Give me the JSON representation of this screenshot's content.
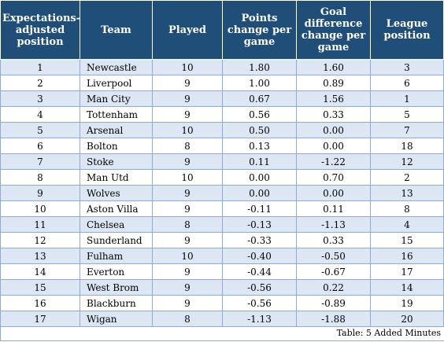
{
  "table": {
    "headers": [
      "Expectations-adjusted position",
      "Team",
      "Played",
      "Points change per game",
      "Goal difference change per game",
      "League position"
    ],
    "rows": [
      [
        "1",
        "Newcastle",
        "10",
        "1.80",
        "1.60",
        "3"
      ],
      [
        "2",
        "Liverpool",
        "9",
        "1.00",
        "0.89",
        "6"
      ],
      [
        "3",
        "Man City",
        "9",
        "0.67",
        "1.56",
        "1"
      ],
      [
        "4",
        "Tottenham",
        "9",
        "0.56",
        "0.33",
        "5"
      ],
      [
        "5",
        "Arsenal",
        "10",
        "0.50",
        "0.00",
        "7"
      ],
      [
        "6",
        "Bolton",
        "8",
        "0.13",
        "0.00",
        "18"
      ],
      [
        "7",
        "Stoke",
        "9",
        "0.11",
        "-1.22",
        "12"
      ],
      [
        "8",
        "Man Utd",
        "10",
        "0.00",
        "0.70",
        "2"
      ],
      [
        "9",
        "Wolves",
        "9",
        "0.00",
        "0.00",
        "13"
      ],
      [
        "10",
        "Aston Villa",
        "9",
        "-0.11",
        "0.11",
        "8"
      ],
      [
        "11",
        "Chelsea",
        "8",
        "-0.13",
        "-1.13",
        "4"
      ],
      [
        "12",
        "Sunderland",
        "9",
        "-0.33",
        "0.33",
        "15"
      ],
      [
        "13",
        "Fulham",
        "10",
        "-0.40",
        "-0.50",
        "16"
      ],
      [
        "14",
        "Everton",
        "9",
        "-0.44",
        "-0.67",
        "17"
      ],
      [
        "15",
        "West Brom",
        "9",
        "-0.56",
        "0.22",
        "14"
      ],
      [
        "16",
        "Blackburn",
        "9",
        "-0.56",
        "-0.89",
        "19"
      ],
      [
        "17",
        "Wigan",
        "8",
        "-1.13",
        "-1.88",
        "20"
      ]
    ]
  },
  "caption": "Table: 5 Added Minutes",
  "colors": {
    "header_bg": "#1f4e79",
    "row_alt_bg": "#dde6f3",
    "border": "#8eaadb"
  }
}
